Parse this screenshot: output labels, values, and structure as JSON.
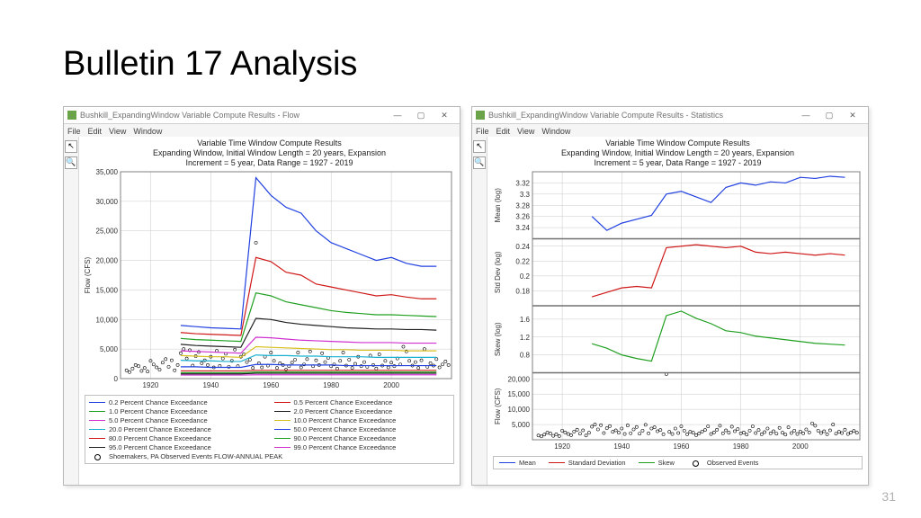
{
  "slide": {
    "title": "Bulletin 17 Analysis",
    "page_number": "31"
  },
  "window_flow": {
    "title": "Bushkill_ExpandingWindow Variable Compute Results - Flow",
    "menu": [
      "File",
      "Edit",
      "View",
      "Window"
    ],
    "chart_title_lines": [
      "Variable Time Window Compute Results",
      "Expanding Window, Initial Window Length = 20 years, Expansion",
      "Increment = 5 year, Data Range = 1927 - 2019"
    ],
    "ylabel": "Flow (CFS)",
    "x": {
      "min": 1910,
      "max": 2020,
      "ticks": [
        1920,
        1940,
        1960,
        1980,
        2000
      ]
    },
    "y": {
      "min": 0,
      "max": 35000,
      "tick_step": 5000
    },
    "series": [
      {
        "name": "0.2 Percent Chance Exceedance",
        "color": "#2040e0",
        "y": [
          9000,
          8800,
          8600,
          8500,
          8400,
          34000,
          31000,
          29000,
          28000,
          25000,
          23000,
          22000,
          21000,
          20000,
          20500,
          19500,
          19000,
          19000
        ]
      },
      {
        "name": "0.5 Percent Chance Exceedance",
        "color": "#d01818",
        "y": [
          7800,
          7600,
          7500,
          7400,
          7300,
          20500,
          19800,
          18000,
          17500,
          16000,
          15500,
          15000,
          14500,
          14000,
          14200,
          13800,
          13500,
          13500
        ]
      },
      {
        "name": "1.0 Percent Chance Exceedance",
        "color": "#20a020",
        "y": [
          6800,
          6600,
          6500,
          6400,
          6300,
          14500,
          14000,
          13000,
          12500,
          12000,
          11500,
          11200,
          11000,
          10800,
          10800,
          10700,
          10600,
          10500
        ]
      },
      {
        "name": "2.0 Percent Chance Exceedance",
        "color": "#202020",
        "y": [
          5800,
          5600,
          5500,
          5400,
          5300,
          10200,
          10000,
          9500,
          9200,
          9000,
          8800,
          8600,
          8500,
          8400,
          8400,
          8300,
          8300,
          8200
        ]
      },
      {
        "name": "5.0 Percent Chance Exceedance",
        "color": "#d030d0",
        "y": [
          4700,
          4600,
          4500,
          4400,
          4300,
          7000,
          6900,
          6700,
          6500,
          6400,
          6300,
          6200,
          6100,
          6100,
          6100,
          6000,
          6000,
          6000
        ]
      },
      {
        "name": "10.0 Percent Chance Exceedance",
        "color": "#d8c020",
        "y": [
          3900,
          3800,
          3700,
          3700,
          3600,
          5400,
          5300,
          5200,
          5100,
          5000,
          4900,
          4900,
          4800,
          4800,
          4800,
          4700,
          4700,
          4700
        ]
      },
      {
        "name": "20.0 Percent Chance Exceedance",
        "color": "#18b0d0",
        "y": [
          3100,
          3000,
          3000,
          2900,
          2900,
          4000,
          3900,
          3900,
          3800,
          3800,
          3700,
          3700,
          3700,
          3600,
          3600,
          3600,
          3600,
          3600
        ]
      },
      {
        "name": "50.0 Percent Chance Exceedance",
        "color": "#2040e0",
        "y": [
          2000,
          2000,
          1900,
          1900,
          1900,
          2400,
          2400,
          2300,
          2300,
          2300,
          2300,
          2200,
          2200,
          2200,
          2200,
          2200,
          2200,
          2200
        ]
      },
      {
        "name": "80.0 Percent Chance Exceedance",
        "color": "#d01818",
        "y": [
          1300,
          1300,
          1300,
          1300,
          1300,
          1400,
          1400,
          1400,
          1400,
          1400,
          1400,
          1400,
          1400,
          1400,
          1400,
          1400,
          1400,
          1400
        ]
      },
      {
        "name": "90.0 Percent Chance Exceedance",
        "color": "#20a020",
        "y": [
          1000,
          1000,
          1000,
          1000,
          1000,
          1100,
          1100,
          1100,
          1100,
          1100,
          1100,
          1100,
          1100,
          1100,
          1100,
          1100,
          1100,
          1100
        ]
      },
      {
        "name": "95.0 Percent Chance Exceedance",
        "color": "#202020",
        "y": [
          800,
          800,
          800,
          800,
          800,
          900,
          900,
          900,
          900,
          900,
          900,
          900,
          900,
          900,
          900,
          900,
          900,
          900
        ]
      },
      {
        "name": "99.0 Percent Chance Exceedance",
        "color": "#d030d0",
        "y": [
          600,
          600,
          600,
          600,
          600,
          650,
          650,
          650,
          650,
          650,
          650,
          650,
          650,
          650,
          650,
          650,
          650,
          650
        ]
      }
    ],
    "series_x_start": 1930,
    "series_x_step": 5,
    "observed_label": "Shoemakers, PA Observed Events FLOW-ANNUAL PEAK",
    "observed": [
      [
        1912,
        1400
      ],
      [
        1913,
        1100
      ],
      [
        1914,
        1700
      ],
      [
        1915,
        2300
      ],
      [
        1916,
        2100
      ],
      [
        1917,
        1300
      ],
      [
        1918,
        1800
      ],
      [
        1919,
        1200
      ],
      [
        1920,
        3000
      ],
      [
        1921,
        2400
      ],
      [
        1922,
        1900
      ],
      [
        1923,
        1500
      ],
      [
        1924,
        2700
      ],
      [
        1925,
        3300
      ],
      [
        1926,
        2000
      ],
      [
        1927,
        3100
      ],
      [
        1928,
        1400
      ],
      [
        1929,
        2300
      ],
      [
        1930,
        4300
      ],
      [
        1931,
        5000
      ],
      [
        1932,
        3400
      ],
      [
        1933,
        4800
      ],
      [
        1934,
        2200
      ],
      [
        1935,
        3800
      ],
      [
        1936,
        4500
      ],
      [
        1937,
        2600
      ],
      [
        1938,
        3100
      ],
      [
        1939,
        2300
      ],
      [
        1940,
        3700
      ],
      [
        1941,
        1900
      ],
      [
        1942,
        4700
      ],
      [
        1943,
        2150
      ],
      [
        1944,
        3400
      ],
      [
        1945,
        4200
      ],
      [
        1946,
        2000
      ],
      [
        1947,
        3000
      ],
      [
        1948,
        4900
      ],
      [
        1949,
        2100
      ],
      [
        1950,
        3700
      ],
      [
        1951,
        4100
      ],
      [
        1952,
        2800
      ],
      [
        1953,
        3200
      ],
      [
        1954,
        1800
      ],
      [
        1955,
        23000
      ],
      [
        1956,
        2600
      ],
      [
        1957,
        1900
      ],
      [
        1958,
        3700
      ],
      [
        1959,
        2200
      ],
      [
        1960,
        4400
      ],
      [
        1961,
        3000
      ],
      [
        1962,
        1800
      ],
      [
        1963,
        2600
      ],
      [
        1964,
        2300
      ],
      [
        1965,
        1500
      ],
      [
        1966,
        2100
      ],
      [
        1967,
        2700
      ],
      [
        1968,
        3200
      ],
      [
        1969,
        4400
      ],
      [
        1970,
        1900
      ],
      [
        1971,
        2400
      ],
      [
        1972,
        3300
      ],
      [
        1973,
        4600
      ],
      [
        1974,
        2100
      ],
      [
        1975,
        3100
      ],
      [
        1976,
        2300
      ],
      [
        1977,
        4300
      ],
      [
        1978,
        2800
      ],
      [
        1979,
        3500
      ],
      [
        1980,
        2100
      ],
      [
        1981,
        2400
      ],
      [
        1982,
        1700
      ],
      [
        1983,
        3000
      ],
      [
        1984,
        4400
      ],
      [
        1985,
        2200
      ],
      [
        1986,
        3200
      ],
      [
        1987,
        1800
      ],
      [
        1988,
        2500
      ],
      [
        1989,
        3700
      ],
      [
        1990,
        2100
      ],
      [
        1991,
        2800
      ],
      [
        1992,
        2000
      ],
      [
        1993,
        3900
      ],
      [
        1994,
        2300
      ],
      [
        1995,
        1700
      ],
      [
        1996,
        4100
      ],
      [
        1997,
        2200
      ],
      [
        1998,
        3000
      ],
      [
        1999,
        1900
      ],
      [
        2000,
        2700
      ],
      [
        2001,
        2100
      ],
      [
        2002,
        3400
      ],
      [
        2003,
        2400
      ],
      [
        2004,
        5400
      ],
      [
        2005,
        4600
      ],
      [
        2006,
        3000
      ],
      [
        2007,
        2200
      ],
      [
        2008,
        2800
      ],
      [
        2009,
        1800
      ],
      [
        2010,
        3100
      ],
      [
        2011,
        5000
      ],
      [
        2012,
        2000
      ],
      [
        2013,
        2600
      ],
      [
        2014,
        2200
      ],
      [
        2015,
        3300
      ],
      [
        2016,
        1900
      ],
      [
        2017,
        2400
      ],
      [
        2018,
        2900
      ],
      [
        2019,
        2300
      ]
    ],
    "background": "#ffffff",
    "grid_color": "#c8c8c8"
  },
  "window_stats": {
    "title": "Bushkill_ExpandingWindow Variable Compute Results - Statistics",
    "menu": [
      "File",
      "Edit",
      "View",
      "Window"
    ],
    "chart_title_lines": [
      "Variable Time Window Compute Results",
      "Expanding Window, Initial Window Length = 20 years, Expansion",
      "Increment = 5 year, Data Range = 1927 - 2019"
    ],
    "x": {
      "min": 1910,
      "max": 2020,
      "ticks": [
        1920,
        1940,
        1960,
        1980,
        2000
      ]
    },
    "panels": [
      {
        "label": "Mean (log)",
        "min": 3.22,
        "max": 3.34,
        "ticks": [
          3.24,
          3.26,
          3.28,
          3.3,
          3.32
        ],
        "series": {
          "color": "#2040e0",
          "y": [
            3.26,
            3.235,
            3.248,
            3.255,
            3.262,
            3.3,
            3.305,
            3.295,
            3.285,
            3.312,
            3.32,
            3.316,
            3.322,
            3.32,
            3.33,
            3.328,
            3.332,
            3.33
          ]
        }
      },
      {
        "label": "Std Dev (log)",
        "min": 0.16,
        "max": 0.25,
        "ticks": [
          0.18,
          0.2,
          0.22,
          0.24
        ],
        "series": {
          "color": "#d01818",
          "y": [
            0.172,
            0.178,
            0.184,
            0.186,
            0.184,
            0.238,
            0.24,
            0.242,
            0.24,
            0.238,
            0.24,
            0.232,
            0.23,
            0.232,
            0.23,
            0.228,
            0.23,
            0.228
          ]
        }
      },
      {
        "label": "Skew (log)",
        "min": 0.4,
        "max": 1.9,
        "ticks": [
          0.8,
          1.2,
          1.6
        ],
        "series": {
          "color": "#20a020",
          "y": [
            1.05,
            0.95,
            0.8,
            0.72,
            0.66,
            1.68,
            1.78,
            1.62,
            1.5,
            1.34,
            1.3,
            1.22,
            1.18,
            1.14,
            1.1,
            1.06,
            1.04,
            1.02
          ]
        }
      },
      {
        "label": "Flow (CFS)",
        "min": 0,
        "max": 22000,
        "ticks": [
          5000,
          10000,
          15000,
          20000
        ],
        "observed": true
      }
    ],
    "series_x_start": 1930,
    "series_x_step": 5,
    "legend": [
      {
        "label": "Mean",
        "color": "#2040e0"
      },
      {
        "label": "Standard Deviation",
        "color": "#d01818"
      },
      {
        "label": "Skew",
        "color": "#20a020"
      },
      {
        "label": "Observed Events",
        "marker": true
      }
    ],
    "background": "#ffffff",
    "grid_color": "#c8c8c8"
  }
}
